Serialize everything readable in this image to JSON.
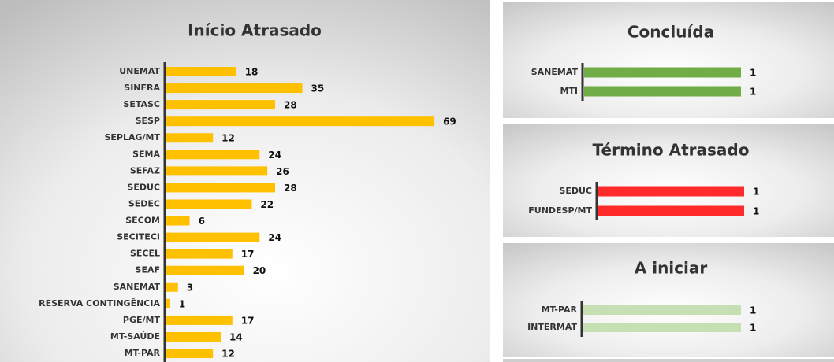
{
  "chart_data": [
    {
      "type": "bar",
      "orientation": "horizontal",
      "title": "Início Atrasado",
      "categories": [
        "UNEMAT",
        "SINFRA",
        "SETASC",
        "SESP",
        "SEPLAG/MT",
        "SEMA",
        "SEFAZ",
        "SEDUC",
        "SEDEC",
        "SECOM",
        "SECITECI",
        "SECEL",
        "SEAF",
        "SANEMAT",
        "RESERVA CONTINGÊNCIA",
        "PGE/MT",
        "MT-SAÚDE",
        "MT-PAR"
      ],
      "values": [
        18,
        35,
        28,
        69,
        12,
        24,
        26,
        28,
        22,
        6,
        24,
        17,
        20,
        3,
        1,
        17,
        14,
        12
      ],
      "color": "#ffc000",
      "xlim": [
        0,
        70
      ]
    },
    {
      "type": "bar",
      "orientation": "horizontal",
      "title": "Concluída",
      "categories": [
        "SANEMAT",
        "MTI"
      ],
      "values": [
        1,
        1
      ],
      "color": "#70ad47",
      "xlim": [
        0,
        1
      ]
    },
    {
      "type": "bar",
      "orientation": "horizontal",
      "title": "Término Atrasado",
      "categories": [
        "SEDUC",
        "FUNDESP/MT"
      ],
      "values": [
        1,
        1
      ],
      "color": "#ff2b2b",
      "xlim": [
        0,
        1
      ]
    },
    {
      "type": "bar",
      "orientation": "horizontal",
      "title": "A iniciar",
      "categories": [
        "MT-PAR",
        "INTERMAT"
      ],
      "values": [
        1,
        1
      ],
      "color": "#c6e0b4",
      "xlim": [
        0,
        1
      ]
    }
  ]
}
